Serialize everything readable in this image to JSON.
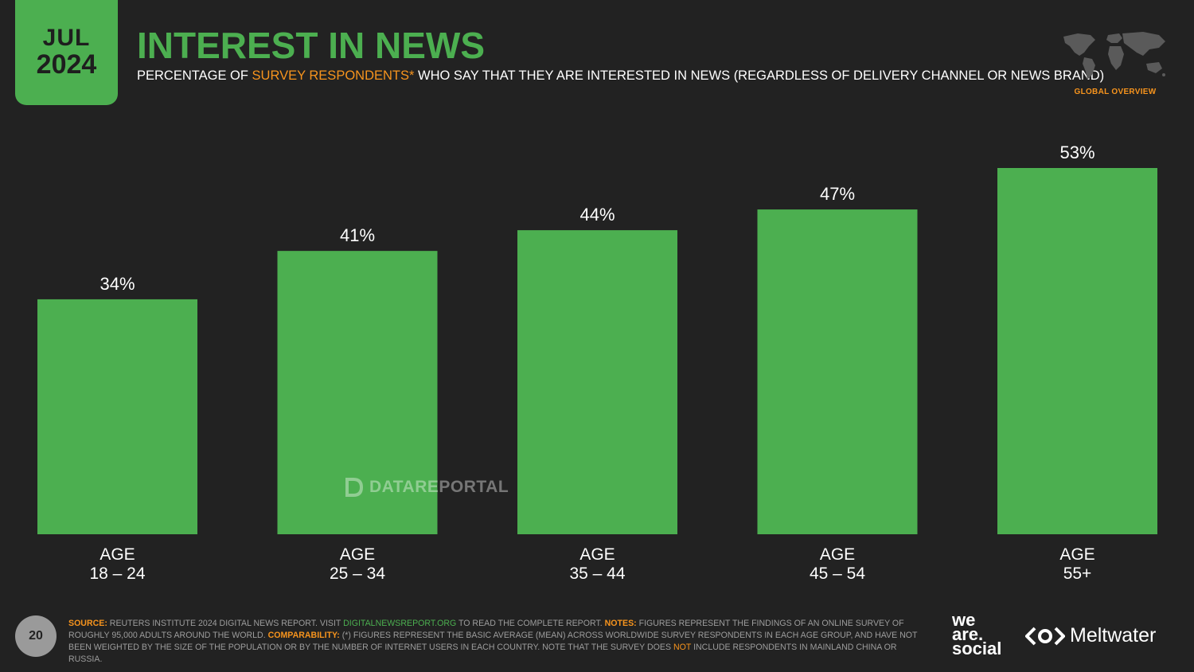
{
  "badge": {
    "month": "JUL",
    "year": "2024"
  },
  "header": {
    "title": "INTEREST IN NEWS",
    "subtitle_prefix": "PERCENTAGE OF ",
    "subtitle_highlight": "SURVEY RESPONDENTS*",
    "subtitle_suffix": " WHO SAY THAT THEY ARE INTERESTED IN NEWS (REGARDLESS OF DELIVERY CHANNEL OR NEWS BRAND)",
    "region_label": "GLOBAL OVERVIEW"
  },
  "chart_data": {
    "type": "bar",
    "categories": [
      {
        "line1": "AGE",
        "line2": "18 – 24"
      },
      {
        "line1": "AGE",
        "line2": "25 – 34"
      },
      {
        "line1": "AGE",
        "line2": "35 – 44"
      },
      {
        "line1": "AGE",
        "line2": "45 – 54"
      },
      {
        "line1": "AGE",
        "line2": "55+"
      }
    ],
    "values": [
      34,
      41,
      44,
      47,
      53
    ],
    "value_labels": [
      "34%",
      "41%",
      "44%",
      "47%",
      "53%"
    ],
    "unit": "%",
    "ylim": [
      0,
      53
    ],
    "grid": false,
    "legend": "none"
  },
  "watermark": "DATAREPORTAL",
  "footer": {
    "page_number": "20",
    "source_key": "SOURCE:",
    "source_text": " REUTERS INSTITUTE 2024 DIGITAL NEWS REPORT. VISIT ",
    "source_link": "DIGITALNEWSREPORT.ORG",
    "source_text2": " TO READ THE COMPLETE REPORT. ",
    "notes_key": "NOTES:",
    "notes_text": " FIGURES REPRESENT THE FINDINGS OF AN ONLINE SURVEY OF ROUGHLY 95,000 ADULTS AROUND THE WORLD. ",
    "comp_key": "COMPARABILITY:",
    "comp_text": " (*) FIGURES REPRESENT THE BASIC AVERAGE (MEAN) ACROSS WORLDWIDE SURVEY RESPONDENTS IN EACH AGE GROUP, AND HAVE NOT BEEN WEIGHTED BY THE SIZE OF THE POPULATION OR BY THE NUMBER OF INTERNET USERS IN EACH COUNTRY. NOTE THAT THE SURVEY DOES ",
    "comp_not": "NOT",
    "comp_text2": " INCLUDE RESPONDENTS IN MAINLAND CHINA OR RUSSIA."
  },
  "logos": {
    "was_line1": "we",
    "was_line2": "are.",
    "was_line3": "social",
    "meltwater": "Meltwater"
  },
  "colors": {
    "background": "#222222",
    "accent_green": "#4caf50",
    "accent_orange": "#f7941d"
  }
}
